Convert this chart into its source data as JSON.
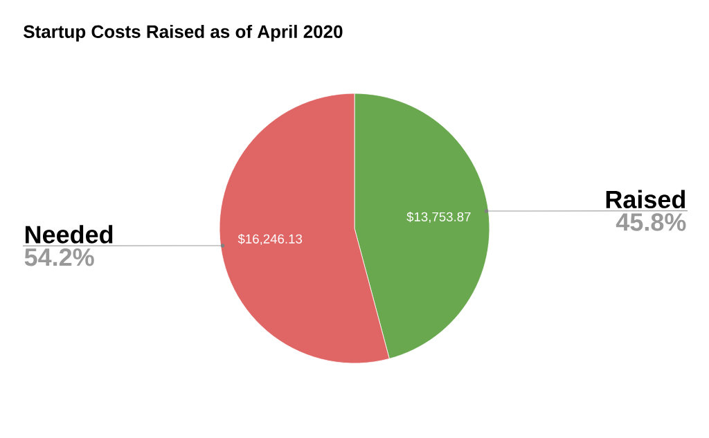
{
  "chart_data": {
    "type": "pie",
    "title": "Startup Costs Raised as of April 2020",
    "categories": [
      "Raised",
      "Needed"
    ],
    "values": [
      13753.87,
      16246.13
    ],
    "colors": [
      "#6aa84f",
      "#e06666"
    ],
    "value_labels": [
      "$13,753.87",
      "$16,246.13"
    ],
    "annotations": [
      "45.8%",
      "54.2%"
    ]
  }
}
